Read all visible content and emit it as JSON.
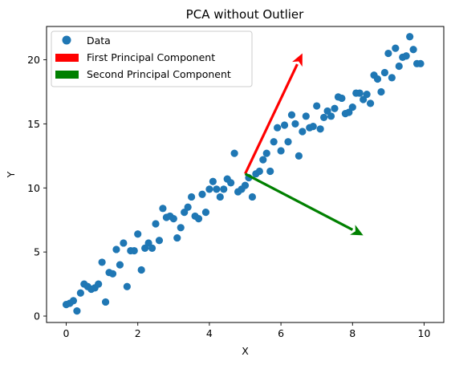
{
  "chart_data": {
    "type": "scatter",
    "title": "PCA without Outlier",
    "xlabel": "X",
    "ylabel": "Y",
    "xlim": [
      -0.55,
      10.55
    ],
    "ylim": [
      -0.5,
      22.6
    ],
    "xticks": [
      "0",
      "2",
      "4",
      "6",
      "8",
      "10"
    ],
    "yticks": [
      "0",
      "5",
      "10",
      "15",
      "20"
    ],
    "grid": false,
    "legend_position": "top-left",
    "series": [
      {
        "name": "Data",
        "color": "#1f77b4",
        "points": [
          [
            0.0,
            0.9
          ],
          [
            0.1,
            1.0
          ],
          [
            0.2,
            1.2
          ],
          [
            0.3,
            0.4
          ],
          [
            0.4,
            1.8
          ],
          [
            0.5,
            2.5
          ],
          [
            0.6,
            2.3
          ],
          [
            0.7,
            2.1
          ],
          [
            0.8,
            2.2
          ],
          [
            0.9,
            2.5
          ],
          [
            1.0,
            4.2
          ],
          [
            1.1,
            1.1
          ],
          [
            1.2,
            3.4
          ],
          [
            1.3,
            3.3
          ],
          [
            1.4,
            5.2
          ],
          [
            1.5,
            4.0
          ],
          [
            1.6,
            5.7
          ],
          [
            1.7,
            2.3
          ],
          [
            1.8,
            5.1
          ],
          [
            1.9,
            5.1
          ],
          [
            2.0,
            6.4
          ],
          [
            2.1,
            3.6
          ],
          [
            2.2,
            5.3
          ],
          [
            2.3,
            5.7
          ],
          [
            2.4,
            5.3
          ],
          [
            2.5,
            7.2
          ],
          [
            2.6,
            5.9
          ],
          [
            2.7,
            8.4
          ],
          [
            2.8,
            7.7
          ],
          [
            2.9,
            7.8
          ],
          [
            3.0,
            7.6
          ],
          [
            3.1,
            6.1
          ],
          [
            3.2,
            6.9
          ],
          [
            3.3,
            8.1
          ],
          [
            3.4,
            8.5
          ],
          [
            3.5,
            9.3
          ],
          [
            3.6,
            7.8
          ],
          [
            3.7,
            7.6
          ],
          [
            3.8,
            9.5
          ],
          [
            3.9,
            8.1
          ],
          [
            4.0,
            9.9
          ],
          [
            4.1,
            10.5
          ],
          [
            4.2,
            9.9
          ],
          [
            4.3,
            9.3
          ],
          [
            4.4,
            9.9
          ],
          [
            4.5,
            10.7
          ],
          [
            4.6,
            10.4
          ],
          [
            4.7,
            12.7
          ],
          [
            4.8,
            9.7
          ],
          [
            4.9,
            9.9
          ],
          [
            5.0,
            10.2
          ],
          [
            5.1,
            10.8
          ],
          [
            5.2,
            9.3
          ],
          [
            5.3,
            11.1
          ],
          [
            5.4,
            11.3
          ],
          [
            5.5,
            12.2
          ],
          [
            5.6,
            12.7
          ],
          [
            5.7,
            11.3
          ],
          [
            5.8,
            13.6
          ],
          [
            5.9,
            14.7
          ],
          [
            6.0,
            12.9
          ],
          [
            6.1,
            14.9
          ],
          [
            6.2,
            13.6
          ],
          [
            6.3,
            15.7
          ],
          [
            6.4,
            15.0
          ],
          [
            6.5,
            12.5
          ],
          [
            6.6,
            14.4
          ],
          [
            6.7,
            15.6
          ],
          [
            6.8,
            14.7
          ],
          [
            6.9,
            14.8
          ],
          [
            7.0,
            16.4
          ],
          [
            7.1,
            14.6
          ],
          [
            7.2,
            15.5
          ],
          [
            7.3,
            16.0
          ],
          [
            7.4,
            15.6
          ],
          [
            7.5,
            16.2
          ],
          [
            7.6,
            17.1
          ],
          [
            7.7,
            17.0
          ],
          [
            7.8,
            15.8
          ],
          [
            7.9,
            15.9
          ],
          [
            8.0,
            16.3
          ],
          [
            8.1,
            17.4
          ],
          [
            8.2,
            17.4
          ],
          [
            8.3,
            16.9
          ],
          [
            8.4,
            17.3
          ],
          [
            8.5,
            16.6
          ],
          [
            8.6,
            18.8
          ],
          [
            8.7,
            18.5
          ],
          [
            8.8,
            17.5
          ],
          [
            8.9,
            19.0
          ],
          [
            9.0,
            20.5
          ],
          [
            9.1,
            18.6
          ],
          [
            9.2,
            20.9
          ],
          [
            9.3,
            19.5
          ],
          [
            9.4,
            20.2
          ],
          [
            9.5,
            20.3
          ],
          [
            9.6,
            21.8
          ],
          [
            9.7,
            20.8
          ],
          [
            9.8,
            19.7
          ],
          [
            9.9,
            19.7
          ]
        ]
      }
    ],
    "arrows": [
      {
        "name": "First Principal Component",
        "color": "#ff0000",
        "start": [
          5.0,
          11.1
        ],
        "end": [
          6.6,
          20.5
        ]
      },
      {
        "name": "Second Principal Component",
        "color": "#008000",
        "start": [
          5.0,
          11.1
        ],
        "end": [
          8.3,
          6.3
        ]
      }
    ],
    "legend": [
      {
        "label": "Data",
        "kind": "marker",
        "color": "#1f77b4"
      },
      {
        "label": "First Principal Component",
        "kind": "patch",
        "color": "#ff0000"
      },
      {
        "label": "Second Principal Component",
        "kind": "patch",
        "color": "#008000"
      }
    ]
  }
}
